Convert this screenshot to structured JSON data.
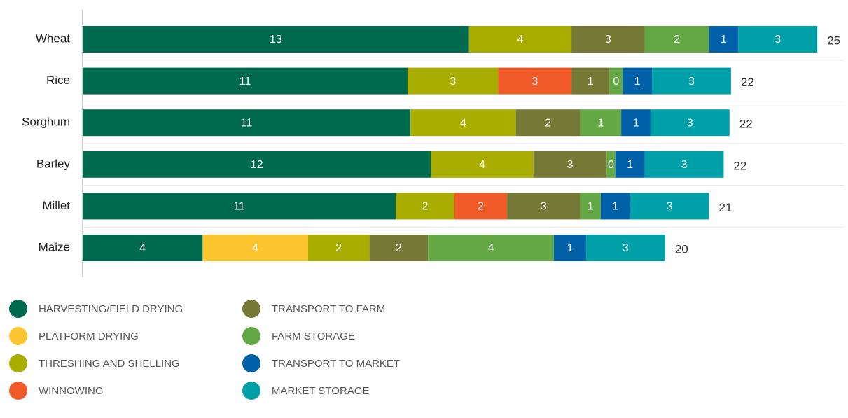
{
  "chart_data": {
    "type": "stacked-bar-horizontal",
    "categories": [
      "Wheat",
      "Rice",
      "Sorghum",
      "Barley",
      "Millet",
      "Maize"
    ],
    "totals": [
      25,
      22,
      22,
      22,
      21,
      20
    ],
    "series": [
      {
        "name": "HARVESTING/FIELD DRYING",
        "color": "#006a4e",
        "values": [
          13.2,
          11.1,
          11.2,
          11.9,
          10.7,
          4.1
        ],
        "value_labels": [
          "13",
          "11",
          "11",
          "12",
          "11",
          "4"
        ]
      },
      {
        "name": "PLATFORM DRYING",
        "color": "#fdc530",
        "values": [
          null,
          null,
          null,
          null,
          null,
          3.6
        ],
        "value_labels": [
          null,
          null,
          null,
          null,
          null,
          "4"
        ]
      },
      {
        "name": "THRESHING AND SHELLING",
        "color": "#a8ad00",
        "values": [
          3.5,
          3.1,
          3.6,
          3.5,
          2.0,
          2.1
        ],
        "value_labels": [
          "4",
          "3",
          "4",
          "4",
          "2",
          "2"
        ]
      },
      {
        "name": "WINNOWING",
        "color": "#f05a28",
        "values": [
          null,
          2.5,
          null,
          null,
          1.8,
          null
        ],
        "value_labels": [
          null,
          "3",
          null,
          null,
          "2",
          null
        ]
      },
      {
        "name": "TRANSPORT TO FARM",
        "color": "#767836",
        "values": [
          2.5,
          1.3,
          2.2,
          2.5,
          2.5,
          2.0
        ],
        "value_labels": [
          "3",
          "1",
          "2",
          "3",
          "3",
          "2"
        ]
      },
      {
        "name": "FARM STORAGE",
        "color": "#64a845",
        "values": [
          2.2,
          0.45,
          1.4,
          0.3,
          0.7,
          4.3
        ],
        "value_labels": [
          "2",
          "0",
          "1",
          "0",
          "1",
          "4"
        ]
      },
      {
        "name": "TRANSPORT TO MARKET",
        "color": "#0061a8",
        "values": [
          1.0,
          1.0,
          1.0,
          1.0,
          1.0,
          1.1
        ],
        "value_labels": [
          "1",
          "1",
          "1",
          "1",
          "1",
          "1"
        ]
      },
      {
        "name": "MARKET STORAGE",
        "color": "#00a0a8",
        "values": [
          2.7,
          2.7,
          2.7,
          2.7,
          2.7,
          2.7
        ],
        "value_labels": [
          "3",
          "3",
          "3",
          "3",
          "3",
          "3"
        ]
      }
    ]
  }
}
